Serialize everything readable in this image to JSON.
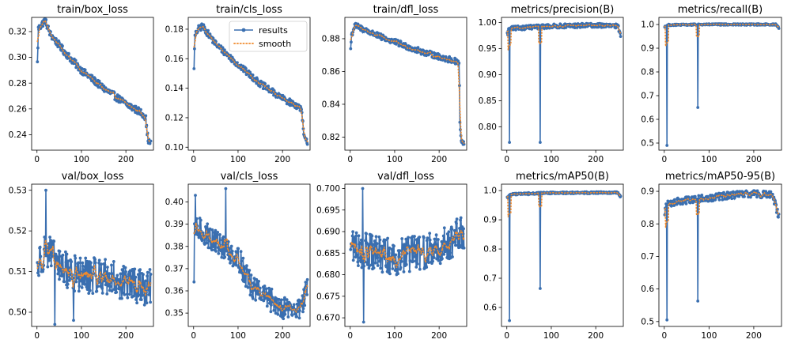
{
  "colors": {
    "results": "#3a6fb0",
    "smooth": "#f08a2c"
  },
  "legend": {
    "results": "results",
    "smooth": "smooth",
    "placement": "upper-right of train/cls_loss"
  },
  "chart_data": [
    {
      "type": "line",
      "title": "train/box_loss",
      "xlim": [
        -12,
        262
      ],
      "ylim": [
        0.228,
        0.331
      ],
      "xticks": [
        0,
        100,
        200
      ],
      "xtick_labels": [
        "0",
        "100",
        "200"
      ],
      "yticks": [
        0.24,
        0.26,
        0.28,
        0.3,
        0.32
      ],
      "ytick_labels": [
        "0.24",
        "0.26",
        "0.28",
        "0.30",
        "0.32"
      ],
      "series": [
        {
          "name": "results",
          "marker": "circle"
        },
        {
          "name": "smooth",
          "style": "dotted"
        }
      ],
      "profile": [
        [
          0,
          0.282
        ],
        [
          3,
          0.322
        ],
        [
          10,
          0.325
        ],
        [
          18,
          0.329
        ],
        [
          30,
          0.318
        ],
        [
          60,
          0.305
        ],
        [
          100,
          0.29
        ],
        [
          150,
          0.276
        ],
        [
          200,
          0.264
        ],
        [
          240,
          0.256
        ],
        [
          245,
          0.252
        ],
        [
          248,
          0.24
        ],
        [
          252,
          0.234
        ]
      ],
      "noise": 0.0028,
      "points": 250,
      "spikes": []
    },
    {
      "type": "line",
      "title": "train/cls_loss",
      "xlim": [
        -12,
        262
      ],
      "ylim": [
        0.098,
        0.188
      ],
      "xticks": [
        0,
        100,
        200
      ],
      "xtick_labels": [
        "0",
        "100",
        "200"
      ],
      "yticks": [
        0.1,
        0.12,
        0.14,
        0.16,
        0.18
      ],
      "ytick_labels": [
        "0.10",
        "0.12",
        "0.14",
        "0.16",
        "0.18"
      ],
      "series": [
        {
          "name": "results",
          "marker": "circle"
        },
        {
          "name": "smooth",
          "style": "dotted"
        }
      ],
      "profile": [
        [
          0,
          0.145
        ],
        [
          3,
          0.175
        ],
        [
          10,
          0.18
        ],
        [
          20,
          0.182
        ],
        [
          50,
          0.17
        ],
        [
          100,
          0.156
        ],
        [
          150,
          0.143
        ],
        [
          200,
          0.133
        ],
        [
          240,
          0.127
        ],
        [
          244,
          0.122
        ],
        [
          248,
          0.108
        ],
        [
          252,
          0.104
        ]
      ],
      "noise": 0.0022,
      "points": 250,
      "spikes": []
    },
    {
      "type": "line",
      "title": "train/dfl_loss",
      "xlim": [
        -12,
        262
      ],
      "ylim": [
        0.812,
        0.893
      ],
      "xticks": [
        0,
        100,
        200
      ],
      "xtick_labels": [
        "0",
        "100",
        "200"
      ],
      "yticks": [
        0.82,
        0.84,
        0.86,
        0.88
      ],
      "ytick_labels": [
        "0.82",
        "0.84",
        "0.86",
        "0.88"
      ],
      "series": [
        {
          "name": "results",
          "marker": "circle"
        },
        {
          "name": "smooth",
          "style": "dotted"
        }
      ],
      "profile": [
        [
          0,
          0.87
        ],
        [
          3,
          0.882
        ],
        [
          10,
          0.888
        ],
        [
          20,
          0.887
        ],
        [
          60,
          0.882
        ],
        [
          100,
          0.878
        ],
        [
          150,
          0.873
        ],
        [
          200,
          0.869
        ],
        [
          240,
          0.866
        ],
        [
          245,
          0.865
        ],
        [
          247,
          0.826
        ],
        [
          250,
          0.818
        ],
        [
          252,
          0.816
        ]
      ],
      "noise": 0.0018,
      "points": 250,
      "spikes": []
    },
    {
      "type": "line",
      "title": "metrics/precision(B)",
      "xlim": [
        -12,
        262
      ],
      "ylim": [
        0.755,
        1.01
      ],
      "xticks": [
        0,
        100,
        200
      ],
      "xtick_labels": [
        "0",
        "100",
        "200"
      ],
      "yticks": [
        0.8,
        0.85,
        0.9,
        0.95,
        1.0
      ],
      "ytick_labels": [
        "0.80",
        "0.85",
        "0.90",
        "0.95",
        "1.00"
      ],
      "series": [
        {
          "name": "results",
          "marker": "circle"
        },
        {
          "name": "smooth",
          "style": "dotted"
        }
      ],
      "profile": [
        [
          0,
          0.975
        ],
        [
          5,
          0.988
        ],
        [
          30,
          0.99
        ],
        [
          100,
          0.993
        ],
        [
          200,
          0.995
        ],
        [
          250,
          0.993
        ],
        [
          256,
          0.975
        ]
      ],
      "noise": 0.004,
      "points": 256,
      "spikes": [
        {
          "x": 6,
          "y": 0.77
        },
        {
          "x": 75,
          "y": 0.77
        }
      ]
    },
    {
      "type": "line",
      "title": "metrics/recall(B)",
      "xlim": [
        -12,
        262
      ],
      "ylim": [
        0.47,
        1.03
      ],
      "xticks": [
        0,
        100,
        200
      ],
      "xtick_labels": [
        "0",
        "100",
        "200"
      ],
      "yticks": [
        0.5,
        0.6,
        0.7,
        0.8,
        0.9,
        1.0
      ],
      "ytick_labels": [
        "0.5",
        "0.6",
        "0.7",
        "0.8",
        "0.9",
        "1.0"
      ],
      "series": [
        {
          "name": "results",
          "marker": "circle"
        },
        {
          "name": "smooth",
          "style": "dotted"
        }
      ],
      "profile": [
        [
          0,
          0.99
        ],
        [
          10,
          0.998
        ],
        [
          100,
          1.0
        ],
        [
          250,
          1.0
        ],
        [
          256,
          0.985
        ]
      ],
      "noise": 0.003,
      "points": 256,
      "spikes": [
        {
          "x": 6,
          "y": 0.49
        },
        {
          "x": 75,
          "y": 0.65
        }
      ]
    },
    {
      "type": "line",
      "title": "val/box_loss",
      "xlim": [
        -12,
        262
      ],
      "ylim": [
        0.4965,
        0.5315
      ],
      "xticks": [
        0,
        100,
        200
      ],
      "xtick_labels": [
        "0",
        "100",
        "200"
      ],
      "yticks": [
        0.5,
        0.51,
        0.52,
        0.53
      ],
      "ytick_labels": [
        "0.50",
        "0.51",
        "0.52",
        "0.53"
      ],
      "series": [
        {
          "name": "results",
          "marker": "circle"
        },
        {
          "name": "smooth",
          "style": "dotted"
        }
      ],
      "profile": [
        [
          0,
          0.511
        ],
        [
          20,
          0.516
        ],
        [
          50,
          0.511
        ],
        [
          100,
          0.509
        ],
        [
          150,
          0.509
        ],
        [
          200,
          0.507
        ],
        [
          255,
          0.506
        ]
      ],
      "noise": 0.0045,
      "points": 255,
      "spikes": [
        {
          "x": 20,
          "y": 0.53
        },
        {
          "x": 40,
          "y": 0.497
        },
        {
          "x": 82,
          "y": 0.498
        }
      ]
    },
    {
      "type": "line",
      "title": "val/cls_loss",
      "xlim": [
        -12,
        262
      ],
      "ylim": [
        0.344,
        0.408
      ],
      "xticks": [
        0,
        100,
        200
      ],
      "xtick_labels": [
        "0",
        "100",
        "200"
      ],
      "yticks": [
        0.35,
        0.36,
        0.37,
        0.38,
        0.39,
        0.4
      ],
      "ytick_labels": [
        "0.35",
        "0.36",
        "0.37",
        "0.38",
        "0.39",
        "0.40"
      ],
      "series": [
        {
          "name": "results",
          "marker": "circle"
        },
        {
          "name": "smooth",
          "style": "dotted"
        }
      ],
      "profile": [
        [
          0,
          0.385
        ],
        [
          10,
          0.388
        ],
        [
          50,
          0.382
        ],
        [
          100,
          0.375
        ],
        [
          130,
          0.362
        ],
        [
          170,
          0.356
        ],
        [
          200,
          0.353
        ],
        [
          235,
          0.351
        ],
        [
          255,
          0.36
        ]
      ],
      "noise": 0.0055,
      "points": 255,
      "spikes": [
        {
          "x": 4,
          "y": 0.403
        },
        {
          "x": 72,
          "y": 0.406
        },
        {
          "x": 0,
          "y": 0.364
        }
      ]
    },
    {
      "type": "line",
      "title": "val/dfl_loss",
      "xlim": [
        -12,
        262
      ],
      "ylim": [
        0.668,
        0.701
      ],
      "xticks": [
        0,
        100,
        200
      ],
      "xtick_labels": [
        "0",
        "100",
        "200"
      ],
      "yticks": [
        0.67,
        0.675,
        0.68,
        0.685,
        0.69,
        0.695,
        0.7
      ],
      "ytick_labels": [
        "0.670",
        "0.675",
        "0.680",
        "0.685",
        "0.690",
        "0.695",
        "0.700"
      ],
      "series": [
        {
          "name": "results",
          "marker": "circle"
        },
        {
          "name": "smooth",
          "style": "dotted"
        }
      ],
      "profile": [
        [
          0,
          0.687
        ],
        [
          20,
          0.686
        ],
        [
          50,
          0.685
        ],
        [
          100,
          0.684
        ],
        [
          150,
          0.685
        ],
        [
          200,
          0.686
        ],
        [
          255,
          0.69
        ]
      ],
      "noise": 0.0042,
      "points": 255,
      "spikes": [
        {
          "x": 28,
          "y": 0.7
        },
        {
          "x": 30,
          "y": 0.669
        }
      ]
    },
    {
      "type": "line",
      "title": "metrics/mAP50(B)",
      "xlim": [
        -12,
        262
      ],
      "ylim": [
        0.535,
        1.022
      ],
      "xticks": [
        0,
        100,
        200
      ],
      "xtick_labels": [
        "0",
        "100",
        "200"
      ],
      "yticks": [
        0.6,
        0.7,
        0.8,
        0.9,
        1.0
      ],
      "ytick_labels": [
        "0.6",
        "0.7",
        "0.8",
        "0.9",
        "1.0"
      ],
      "series": [
        {
          "name": "results",
          "marker": "circle"
        },
        {
          "name": "smooth",
          "style": "dotted"
        }
      ],
      "profile": [
        [
          0,
          0.975
        ],
        [
          10,
          0.988
        ],
        [
          100,
          0.992
        ],
        [
          250,
          0.993
        ],
        [
          256,
          0.978
        ]
      ],
      "noise": 0.003,
      "points": 256,
      "spikes": [
        {
          "x": 6,
          "y": 0.555
        },
        {
          "x": 75,
          "y": 0.665
        }
      ]
    },
    {
      "type": "line",
      "title": "metrics/mAP50-95(B)",
      "xlim": [
        -12,
        262
      ],
      "ylim": [
        0.485,
        0.922
      ],
      "xticks": [
        0,
        100,
        200
      ],
      "xtick_labels": [
        "0",
        "100",
        "200"
      ],
      "yticks": [
        0.5,
        0.6,
        0.7,
        0.8,
        0.9
      ],
      "ytick_labels": [
        "0.5",
        "0.6",
        "0.7",
        "0.8",
        "0.9"
      ],
      "series": [
        {
          "name": "results",
          "marker": "circle"
        },
        {
          "name": "smooth",
          "style": "dotted"
        }
      ],
      "profile": [
        [
          0,
          0.83
        ],
        [
          5,
          0.86
        ],
        [
          30,
          0.87
        ],
        [
          100,
          0.88
        ],
        [
          150,
          0.888
        ],
        [
          200,
          0.892
        ],
        [
          240,
          0.89
        ],
        [
          248,
          0.86
        ],
        [
          256,
          0.822
        ]
      ],
      "noise": 0.011,
      "points": 256,
      "spikes": [
        {
          "x": 6,
          "y": 0.505
        },
        {
          "x": 75,
          "y": 0.563
        }
      ]
    }
  ]
}
